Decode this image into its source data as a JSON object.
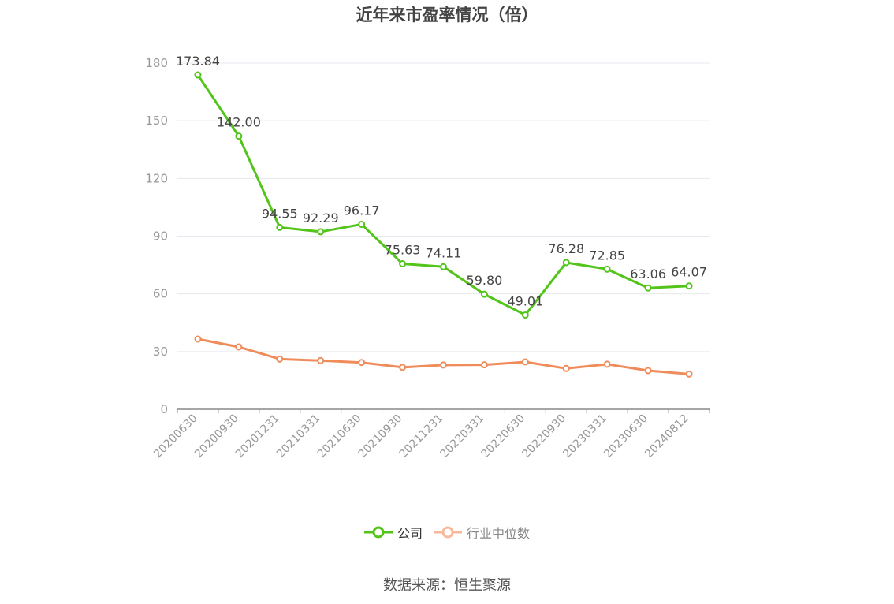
{
  "title": "近年来市盈率情况（倍）",
  "source_note": "数据来源：恒生聚源",
  "chart_data": {
    "type": "line",
    "title": "近年来市盈率情况（倍）",
    "xlabel": "",
    "ylabel": "",
    "categories": [
      "20200630",
      "20200930",
      "20201231",
      "20210331",
      "20210630",
      "20210930",
      "20211231",
      "20220331",
      "20220630",
      "20220930",
      "20230331",
      "20230630",
      "20240812"
    ],
    "ylim": [
      0,
      180
    ],
    "yticks": [
      0,
      30,
      60,
      90,
      120,
      150,
      180
    ],
    "grid": true,
    "legend_position": "bottom",
    "series": [
      {
        "name": "公司",
        "color": "#52c41a",
        "show_labels": true,
        "values": [
          173.84,
          142.0,
          94.55,
          92.29,
          96.17,
          75.63,
          74.11,
          59.8,
          49.01,
          76.28,
          72.85,
          63.06,
          64.07
        ]
      },
      {
        "name": "行业中位数",
        "color": "#f08c5a",
        "show_labels": false,
        "values": [
          36.5,
          32.4,
          26.1,
          25.3,
          24.3,
          21.8,
          23.0,
          23.1,
          24.6,
          21.2,
          23.4,
          20.1,
          18.3
        ]
      }
    ]
  },
  "legend": {
    "company": "公司",
    "industry": "行业中位数"
  }
}
